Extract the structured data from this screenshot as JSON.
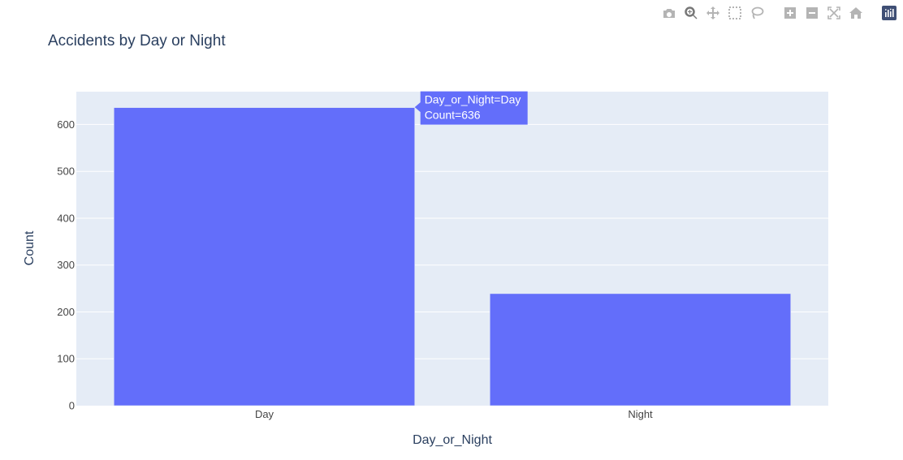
{
  "toolbar": {
    "buttons": [
      {
        "name": "camera-icon",
        "label": "Download plot as a png"
      },
      {
        "name": "zoom-icon",
        "label": "Zoom"
      },
      {
        "name": "pan-icon",
        "label": "Pan"
      },
      {
        "name": "box-select-icon",
        "label": "Box Select"
      },
      {
        "name": "lasso-select-icon",
        "label": "Lasso Select"
      },
      {
        "name": "zoom-in-icon",
        "label": "Zoom in"
      },
      {
        "name": "zoom-out-icon",
        "label": "Zoom out"
      },
      {
        "name": "autoscale-icon",
        "label": "Autoscale"
      },
      {
        "name": "reset-axes-icon",
        "label": "Reset axes"
      },
      {
        "name": "plotly-logo-icon",
        "label": "Produced with Plotly"
      }
    ],
    "icon_color": "#b4b4b4",
    "active_color": "#777777",
    "logo_color": "#3f4f75"
  },
  "chart_data": {
    "type": "bar",
    "title": "Accidents by Day or Night",
    "xlabel": "Day_or_Night",
    "ylabel": "Count",
    "categories": [
      "Day",
      "Night"
    ],
    "values": [
      636,
      239
    ],
    "ylim": [
      0,
      670
    ],
    "yticks": [
      0,
      100,
      200,
      300,
      400,
      500,
      600
    ],
    "grid": true,
    "bar_color": "#636efa",
    "plot_bg": "#e5ecf6",
    "hover": {
      "category_index": 0,
      "line1": "Day_or_Night=Day",
      "line2": "Count=636"
    }
  }
}
